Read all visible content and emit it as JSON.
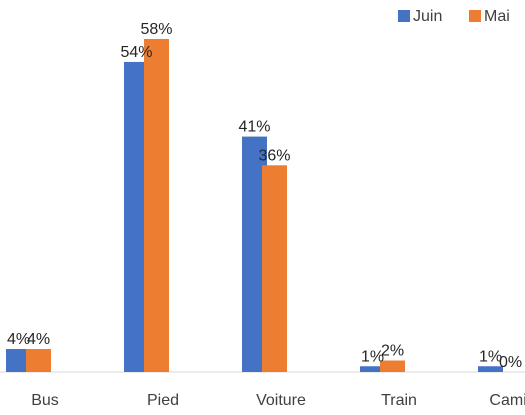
{
  "chart_data": {
    "type": "bar",
    "categories": [
      "Bus",
      "Pied",
      "Voiture",
      "Train",
      "Camion"
    ],
    "series": [
      {
        "name": "Juin",
        "values": [
          4,
          54,
          41,
          1,
          1
        ],
        "labels": [
          "4%",
          "54%",
          "41%",
          "1%",
          "1%"
        ],
        "color": "#4472C4"
      },
      {
        "name": "Mai",
        "values": [
          4,
          58,
          36,
          2,
          0
        ],
        "labels": [
          "4%",
          "58%",
          "36%",
          "2%",
          "0%"
        ],
        "color": "#ED7D31"
      }
    ],
    "ylim": [
      0,
      62
    ],
    "grid": false,
    "legend": "top-right"
  }
}
